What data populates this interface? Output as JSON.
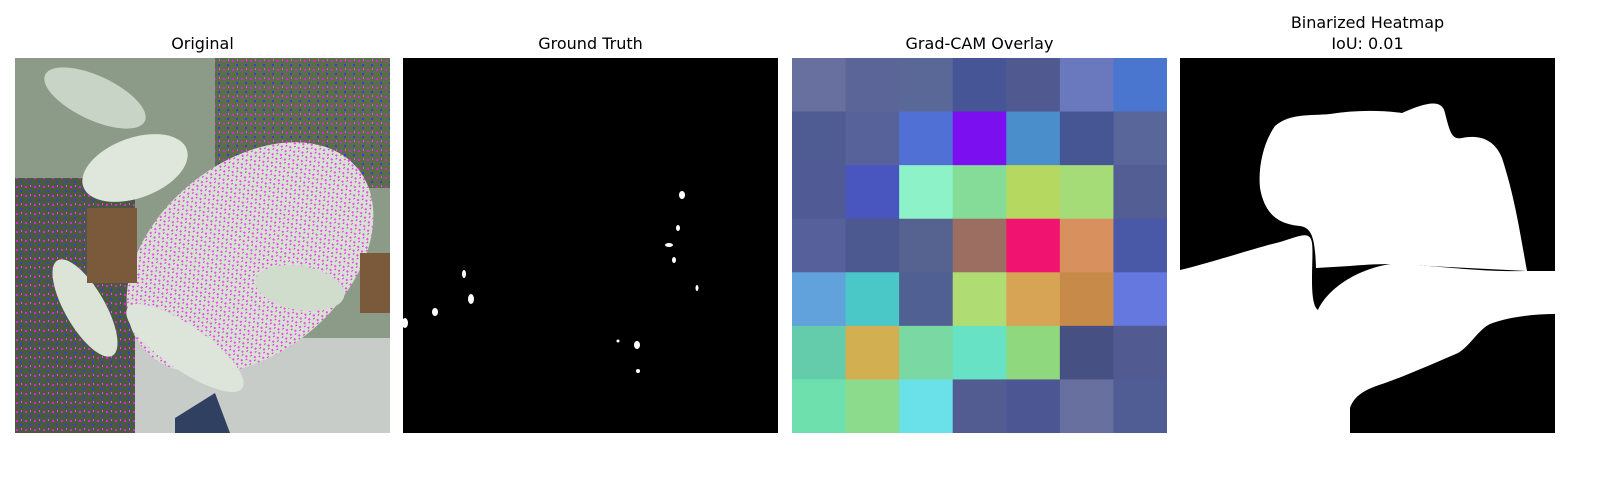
{
  "panels": {
    "original": {
      "title": "Original"
    },
    "ground_truth": {
      "title": "Ground Truth"
    },
    "gradcam": {
      "title": "Grad-CAM Overlay",
      "grid": [
        [
          "#6870a0",
          "#5c6598",
          "#5a6898",
          "#455595",
          "#505a90",
          "#6a78be",
          "#4a76cf"
        ],
        [
          "#4f5c94",
          "#58629a",
          "#5070d6",
          "#7c0ff0",
          "#4a8ecc",
          "#465694",
          "#58669a"
        ],
        [
          "#505a95",
          "#4a56c0",
          "#8ef2c8",
          "#84dc98",
          "#b4d860",
          "#a6dc78",
          "#525e94"
        ],
        [
          "#56609a",
          "#4c5890",
          "#56628f",
          "#9c6e62",
          "#f01470",
          "#d8905e",
          "#4a58a8"
        ],
        [
          "#62a2dc",
          "#4ac8c8",
          "#506092",
          "#b0dc74",
          "#d6a454",
          "#c88a48",
          "#6478e0"
        ],
        [
          "#64ccaa",
          "#d2b052",
          "#7ad8a2",
          "#68e2c4",
          "#90d87e",
          "#475082",
          "#525a92"
        ],
        [
          "#6ee0ae",
          "#8cda8c",
          "#6ae0e8",
          "#525c90",
          "#4c5692",
          "#6870a0",
          "#505c94"
        ]
      ]
    },
    "binarized": {
      "title": "Binarized Heatmap",
      "subtitle": "IoU: 0.01"
    }
  }
}
